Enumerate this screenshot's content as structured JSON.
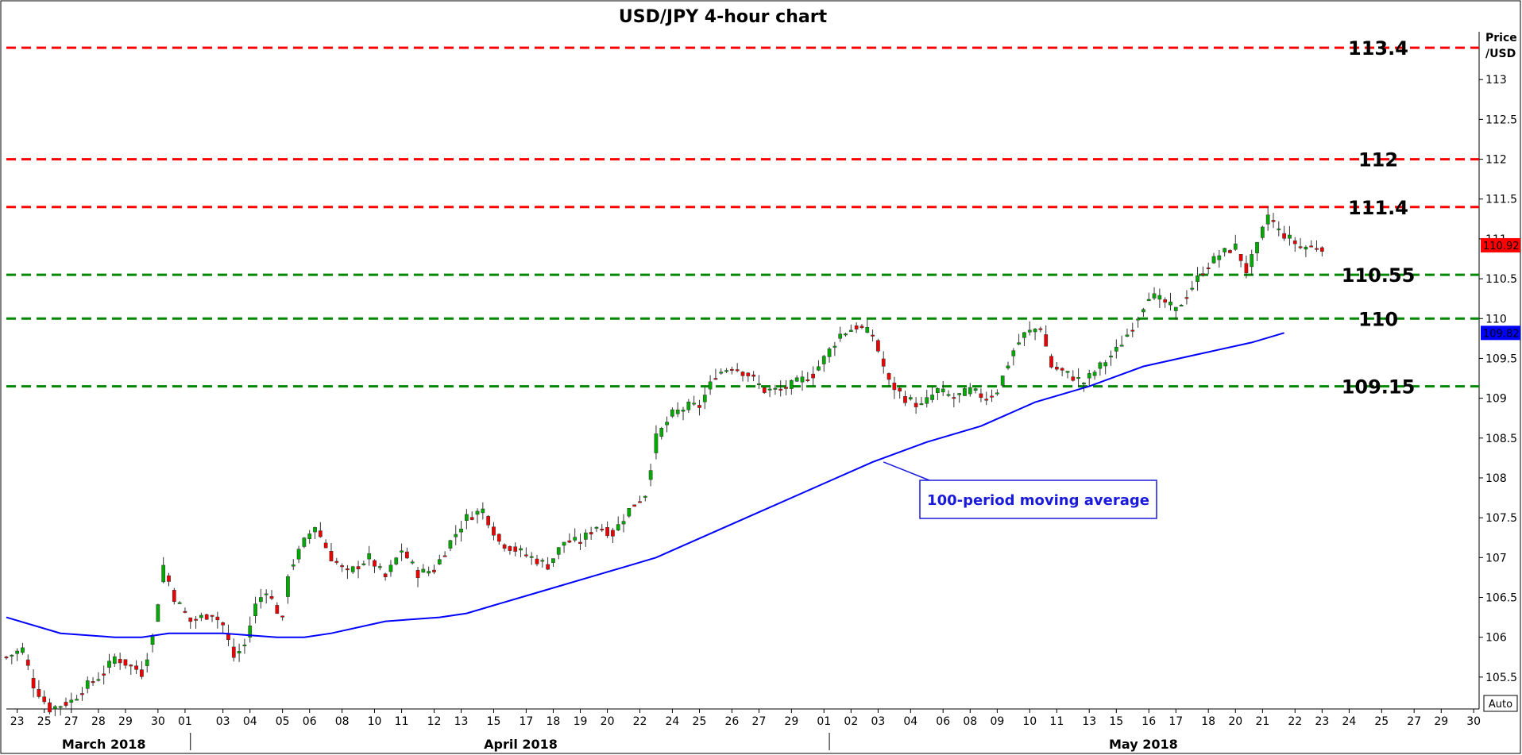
{
  "chart_data": {
    "type": "line",
    "title": "USD/JPY 4-hour chart",
    "ylabel": "Price\n/USD",
    "ylim": [
      105.1,
      113.6
    ],
    "y_ticks": [
      105.5,
      106,
      106.5,
      107,
      107.5,
      108,
      108.5,
      109,
      109.5,
      110,
      110.5,
      111,
      111.5,
      112,
      112.5,
      113
    ],
    "y_tick_labels": [
      "105.5",
      "106",
      "106.5",
      "107",
      "107.5",
      "108",
      "108.5",
      "109",
      "109.5",
      "110",
      "110.5",
      "111",
      "111.5",
      "112",
      "112.5",
      "113"
    ],
    "x_ticks": [
      "23",
      "25",
      "27",
      "28",
      "29",
      "30",
      "01",
      "03",
      "04",
      "05",
      "06",
      "08",
      "10",
      "11",
      "12",
      "13",
      "15",
      "17",
      "18",
      "19",
      "20",
      "22",
      "24",
      "25",
      "26",
      "27",
      "29",
      "01",
      "02",
      "03",
      "04",
      "06",
      "08",
      "09",
      "10",
      "11",
      "13",
      "15",
      "16",
      "17",
      "18",
      "20",
      "21",
      "22",
      "23",
      "24",
      "25",
      "27",
      "29",
      "30"
    ],
    "x_tick_index": [
      2,
      7,
      12,
      17,
      22,
      28,
      33,
      40,
      45,
      51,
      56,
      62,
      68,
      73,
      79,
      84,
      90,
      96,
      101,
      106,
      111,
      117,
      123,
      128,
      134,
      139,
      145,
      151,
      156,
      161,
      167,
      173,
      178,
      183,
      189,
      194,
      200,
      205,
      211,
      216,
      222,
      227,
      232,
      238,
      243,
      248,
      254,
      260,
      265,
      271
    ],
    "months": [
      {
        "label": "March 2018",
        "index": 18
      },
      {
        "label": "April 2018",
        "index": 95
      },
      {
        "label": "May 2018",
        "index": 210
      }
    ],
    "separators": [
      34,
      152
    ],
    "x_count": 273,
    "levels": [
      {
        "value": 113.4,
        "label": "113.4",
        "color": "#ff0000",
        "type": "resistance"
      },
      {
        "value": 112,
        "label": "112",
        "color": "#ff0000",
        "type": "resistance"
      },
      {
        "value": 111.4,
        "label": "111.4",
        "color": "#ff0000",
        "type": "resistance"
      },
      {
        "value": 110.55,
        "label": "110.55",
        "color": "#008800",
        "type": "support"
      },
      {
        "value": 110,
        "label": "110",
        "color": "#008800",
        "type": "support"
      },
      {
        "value": 109.15,
        "label": "109.15",
        "color": "#008800",
        "type": "support"
      }
    ],
    "current_price": {
      "label": "110.92",
      "value": 110.92,
      "color": "#ff0000"
    },
    "ma_price": {
      "label": "109.82",
      "value": 109.82,
      "color": "#0000ff"
    },
    "auto_label": "Auto",
    "ma_annotation": "100-period moving average",
    "ma_annotation_index": 162,
    "price_path": [
      [
        0,
        105.75
      ],
      [
        3,
        105.85
      ],
      [
        5,
        105.4
      ],
      [
        8,
        105.1
      ],
      [
        12,
        105.2
      ],
      [
        15,
        105.4
      ],
      [
        18,
        105.55
      ],
      [
        20,
        105.75
      ],
      [
        24,
        105.6
      ],
      [
        25,
        105.55
      ],
      [
        27,
        106.0
      ],
      [
        29,
        106.9
      ],
      [
        31,
        106.5
      ],
      [
        34,
        106.2
      ],
      [
        38,
        106.3
      ],
      [
        40,
        106.15
      ],
      [
        42,
        105.75
      ],
      [
        44,
        105.9
      ],
      [
        46,
        106.4
      ],
      [
        48,
        106.6
      ],
      [
        51,
        106.2
      ],
      [
        52,
        106.8
      ],
      [
        55,
        107.2
      ],
      [
        57,
        107.4
      ],
      [
        60,
        107.0
      ],
      [
        63,
        106.8
      ],
      [
        67,
        107.0
      ],
      [
        70,
        106.75
      ],
      [
        73,
        107.1
      ],
      [
        76,
        106.8
      ],
      [
        79,
        106.85
      ],
      [
        82,
        107.2
      ],
      [
        85,
        107.5
      ],
      [
        88,
        107.6
      ],
      [
        91,
        107.2
      ],
      [
        94,
        107.1
      ],
      [
        97,
        107.0
      ],
      [
        100,
        106.9
      ],
      [
        103,
        107.2
      ],
      [
        106,
        107.2
      ],
      [
        109,
        107.4
      ],
      [
        112,
        107.3
      ],
      [
        115,
        107.6
      ],
      [
        118,
        107.8
      ],
      [
        120,
        108.5
      ],
      [
        123,
        108.8
      ],
      [
        126,
        108.9
      ],
      [
        128,
        108.9
      ],
      [
        131,
        109.3
      ],
      [
        134,
        109.4
      ],
      [
        137,
        109.3
      ],
      [
        140,
        109.1
      ],
      [
        143,
        109.1
      ],
      [
        146,
        109.2
      ],
      [
        149,
        109.3
      ],
      [
        151,
        109.5
      ],
      [
        154,
        109.8
      ],
      [
        157,
        109.9
      ],
      [
        160,
        109.8
      ],
      [
        163,
        109.2
      ],
      [
        166,
        109.0
      ],
      [
        169,
        108.9
      ],
      [
        172,
        109.1
      ],
      [
        175,
        109.0
      ],
      [
        178,
        109.1
      ],
      [
        181,
        109.0
      ],
      [
        183,
        109.1
      ],
      [
        186,
        109.6
      ],
      [
        188,
        109.8
      ],
      [
        191,
        109.9
      ],
      [
        193,
        109.4
      ],
      [
        196,
        109.3
      ],
      [
        199,
        109.2
      ],
      [
        202,
        109.4
      ],
      [
        205,
        109.6
      ],
      [
        208,
        109.9
      ],
      [
        211,
        110.3
      ],
      [
        214,
        110.2
      ],
      [
        216,
        110.1
      ],
      [
        219,
        110.4
      ],
      [
        221,
        110.6
      ],
      [
        224,
        110.8
      ],
      [
        227,
        110.9
      ],
      [
        229,
        110.6
      ],
      [
        231,
        110.9
      ],
      [
        233,
        111.3
      ],
      [
        235,
        111.1
      ],
      [
        237,
        111.0
      ],
      [
        239,
        110.9
      ],
      [
        241,
        110.9
      ],
      [
        243,
        110.9
      ]
    ],
    "series": [
      {
        "values_path": [
          [
            0,
            106.25
          ],
          [
            10,
            106.05
          ],
          [
            20,
            106.0
          ],
          [
            25,
            106.0
          ],
          [
            30,
            106.05
          ],
          [
            40,
            106.05
          ],
          [
            50,
            106.0
          ],
          [
            55,
            106.0
          ],
          [
            60,
            106.05
          ],
          [
            70,
            106.2
          ],
          [
            80,
            106.25
          ],
          [
            85,
            106.3
          ],
          [
            90,
            106.4
          ],
          [
            100,
            106.6
          ],
          [
            110,
            106.8
          ],
          [
            115,
            106.9
          ],
          [
            120,
            107.0
          ],
          [
            130,
            107.3
          ],
          [
            140,
            107.6
          ],
          [
            150,
            107.9
          ],
          [
            160,
            108.2
          ],
          [
            170,
            108.45
          ],
          [
            180,
            108.65
          ],
          [
            190,
            108.95
          ],
          [
            200,
            109.15
          ],
          [
            210,
            109.4
          ],
          [
            220,
            109.55
          ],
          [
            230,
            109.7
          ],
          [
            236,
            109.82
          ]
        ],
        "color": "#0000ff"
      }
    ]
  }
}
